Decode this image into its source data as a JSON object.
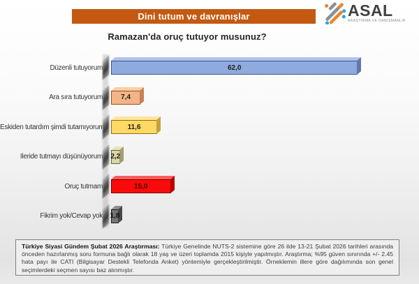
{
  "header": {
    "banner": "Dini tutum ve davranışlar",
    "banner_color": "#C45911"
  },
  "logo": {
    "name": "ASAL",
    "subtitle": "ARAŞTIRMA VE DANIŞMANLIK",
    "accent_blue": "#29A8DF",
    "accent_orange": "#E8872F",
    "accent_gray": "#8A9094"
  },
  "title": "Ramazan'da oruç tutuyor musunuz?",
  "chart_data": {
    "type": "bar",
    "orientation": "horizontal",
    "title": "Ramazan'da oruç tutuyor musunuz?",
    "categories": [
      "Düzenli tutuyorum",
      "Ara sıra tutuyorum",
      "Eskiden tutardım şimdi tutamıyorum",
      "İleride tutmayı düşünüyorum",
      "Oruç tutmam",
      "Fikrim yok/Cevap yok"
    ],
    "values": [
      62.0,
      7.4,
      11.6,
      2.2,
      15.0,
      1.8
    ],
    "value_labels": [
      "62,0",
      "7,4",
      "11,6",
      "2,2",
      "15,0",
      "1,8"
    ],
    "xlim": [
      0,
      65
    ],
    "grid": false,
    "value_label_position": "inside-center",
    "bar_styles": [
      {
        "face": "#8FAADC",
        "border": "#3D568F",
        "side": "#5F79AB",
        "top": "#AFC3EA",
        "label": "#1f1f1f"
      },
      {
        "face": "#F2B488",
        "border": "#99521D",
        "side": "#C58354",
        "top": "#F8CEA8",
        "label": "#1f1f1f"
      },
      {
        "face": "#FFD965",
        "border": "#8E6F12",
        "side": "#C2A23F",
        "top": "#FFE59A",
        "label": "#1f1f1f"
      },
      {
        "face": "#DBD4A4",
        "border": "#64603C",
        "side": "#A29C71",
        "top": "#E8E3C0",
        "label": "#1f1f1f"
      },
      {
        "face": "#FA0B0B",
        "border": "#740000",
        "side": "#B50000",
        "top": "#FF5A5A",
        "label": "#450404"
      },
      {
        "face": "#747474",
        "border": "#1E1E1E",
        "side": "#474747",
        "top": "#909090",
        "label": "#111111"
      }
    ]
  },
  "footnote": {
    "bold": "Türkiye Siyasi Gündem Şubat 2026 Araştırması:",
    "text": " Türkiye Genelinde NUTS-2 sistemine göre 26 ilde 13-21 Şubat 2026 tarihleri arasında önceden hazırlanmış soru formuna bağlı olarak 18 yaş ve üzeri toplamda 2015 kişiyle yapılmıştır. Araştırma; %95 güven sınırında +/- 2.45 hata payı ile CATI (Bilgisayar Destekli Telefonda Anket) yöntemiyle gerçekleştirilmiştir. Örneklemin illere göre dağılımında son genel seçimlerdeki seçmen sayısı baz alınmıştır."
  }
}
